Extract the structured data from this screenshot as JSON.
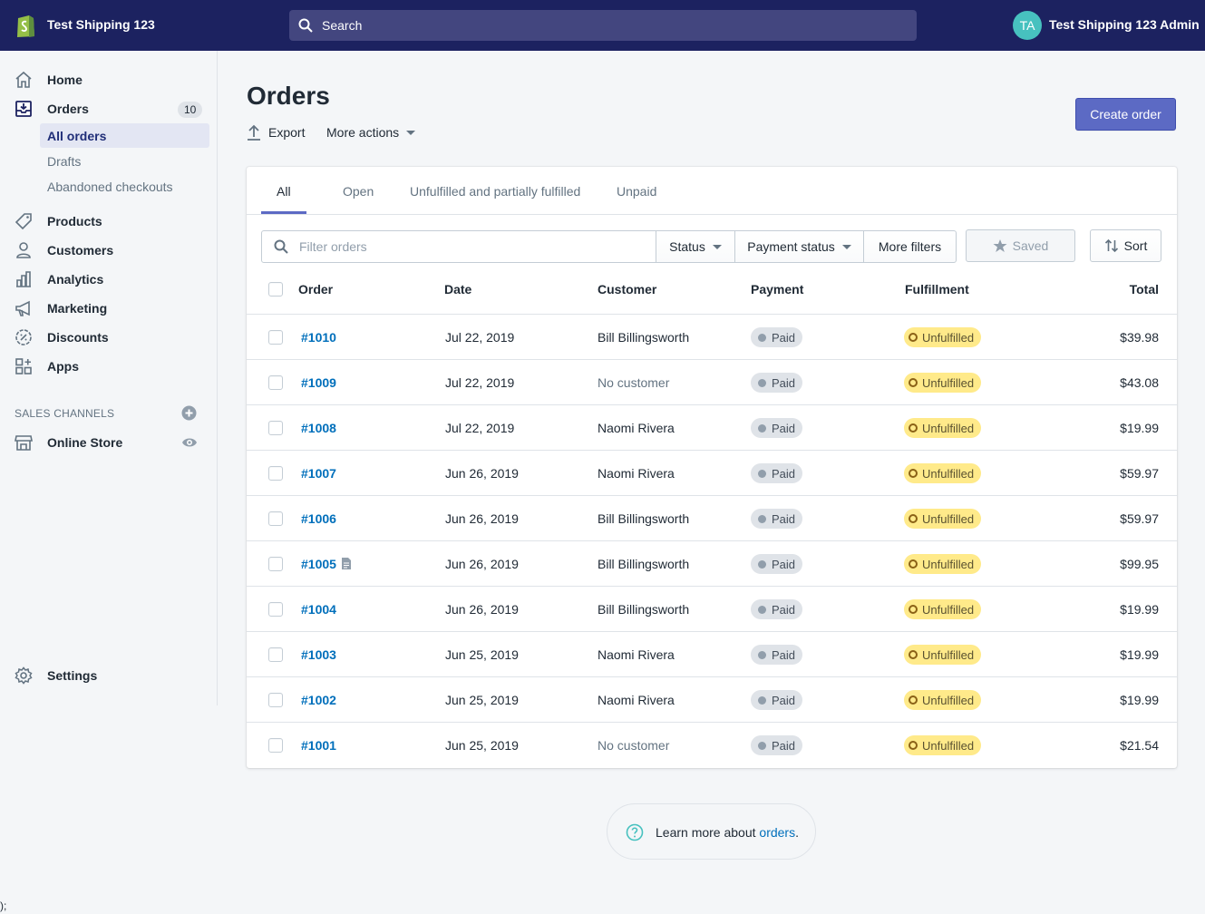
{
  "topbar": {
    "shop_name": "Test Shipping 123",
    "search_placeholder": "Search",
    "avatar_initials": "TA",
    "user_name": "Test Shipping 123 Admin"
  },
  "sidebar": {
    "home": "Home",
    "orders": "Orders",
    "orders_count": "10",
    "sub_items": [
      "All orders",
      "Drafts",
      "Abandoned checkouts"
    ],
    "products": "Products",
    "customers": "Customers",
    "analytics": "Analytics",
    "marketing": "Marketing",
    "discounts": "Discounts",
    "apps": "Apps",
    "sales_channels": "SALES CHANNELS",
    "online_store": "Online Store",
    "settings": "Settings"
  },
  "page": {
    "title": "Orders",
    "export": "Export",
    "more_actions": "More actions",
    "create_order": "Create order"
  },
  "tabs": [
    "All",
    "Open",
    "Unfulfilled and partially fulfilled",
    "Unpaid"
  ],
  "filters": {
    "placeholder": "Filter orders",
    "status": "Status",
    "payment_status": "Payment status",
    "more_filters": "More filters",
    "saved": "Saved",
    "sort": "Sort"
  },
  "columns": [
    "Order",
    "Date",
    "Customer",
    "Payment",
    "Fulfillment",
    "Total"
  ],
  "orders": [
    {
      "id": "#1010",
      "date": "Jul 22, 2019",
      "customer": "Bill Billingsworth",
      "payment": "Paid",
      "fulfillment": "Unfulfilled",
      "total": "$39.98"
    },
    {
      "id": "#1009",
      "date": "Jul 22, 2019",
      "customer": "No customer",
      "payment": "Paid",
      "fulfillment": "Unfulfilled",
      "total": "$43.08"
    },
    {
      "id": "#1008",
      "date": "Jul 22, 2019",
      "customer": "Naomi Rivera",
      "payment": "Paid",
      "fulfillment": "Unfulfilled",
      "total": "$19.99"
    },
    {
      "id": "#1007",
      "date": "Jun 26, 2019",
      "customer": "Naomi Rivera",
      "payment": "Paid",
      "fulfillment": "Unfulfilled",
      "total": "$59.97"
    },
    {
      "id": "#1006",
      "date": "Jun 26, 2019",
      "customer": "Bill Billingsworth",
      "payment": "Paid",
      "fulfillment": "Unfulfilled",
      "total": "$59.97"
    },
    {
      "id": "#1005",
      "date": "Jun 26, 2019",
      "customer": "Bill Billingsworth",
      "payment": "Paid",
      "fulfillment": "Unfulfilled",
      "total": "$99.95"
    },
    {
      "id": "#1004",
      "date": "Jun 26, 2019",
      "customer": "Bill Billingsworth",
      "payment": "Paid",
      "fulfillment": "Unfulfilled",
      "total": "$19.99"
    },
    {
      "id": "#1003",
      "date": "Jun 25, 2019",
      "customer": "Naomi Rivera",
      "payment": "Paid",
      "fulfillment": "Unfulfilled",
      "total": "$19.99"
    },
    {
      "id": "#1002",
      "date": "Jun 25, 2019",
      "customer": "Naomi Rivera",
      "payment": "Paid",
      "fulfillment": "Unfulfilled",
      "total": "$19.99"
    },
    {
      "id": "#1001",
      "date": "Jun 25, 2019",
      "customer": "No customer",
      "payment": "Paid",
      "fulfillment": "Unfulfilled",
      "total": "$21.54"
    }
  ],
  "learn_more": {
    "text": "Learn more about ",
    "link": "orders",
    "suffix": "."
  },
  "stray_text": ");"
}
